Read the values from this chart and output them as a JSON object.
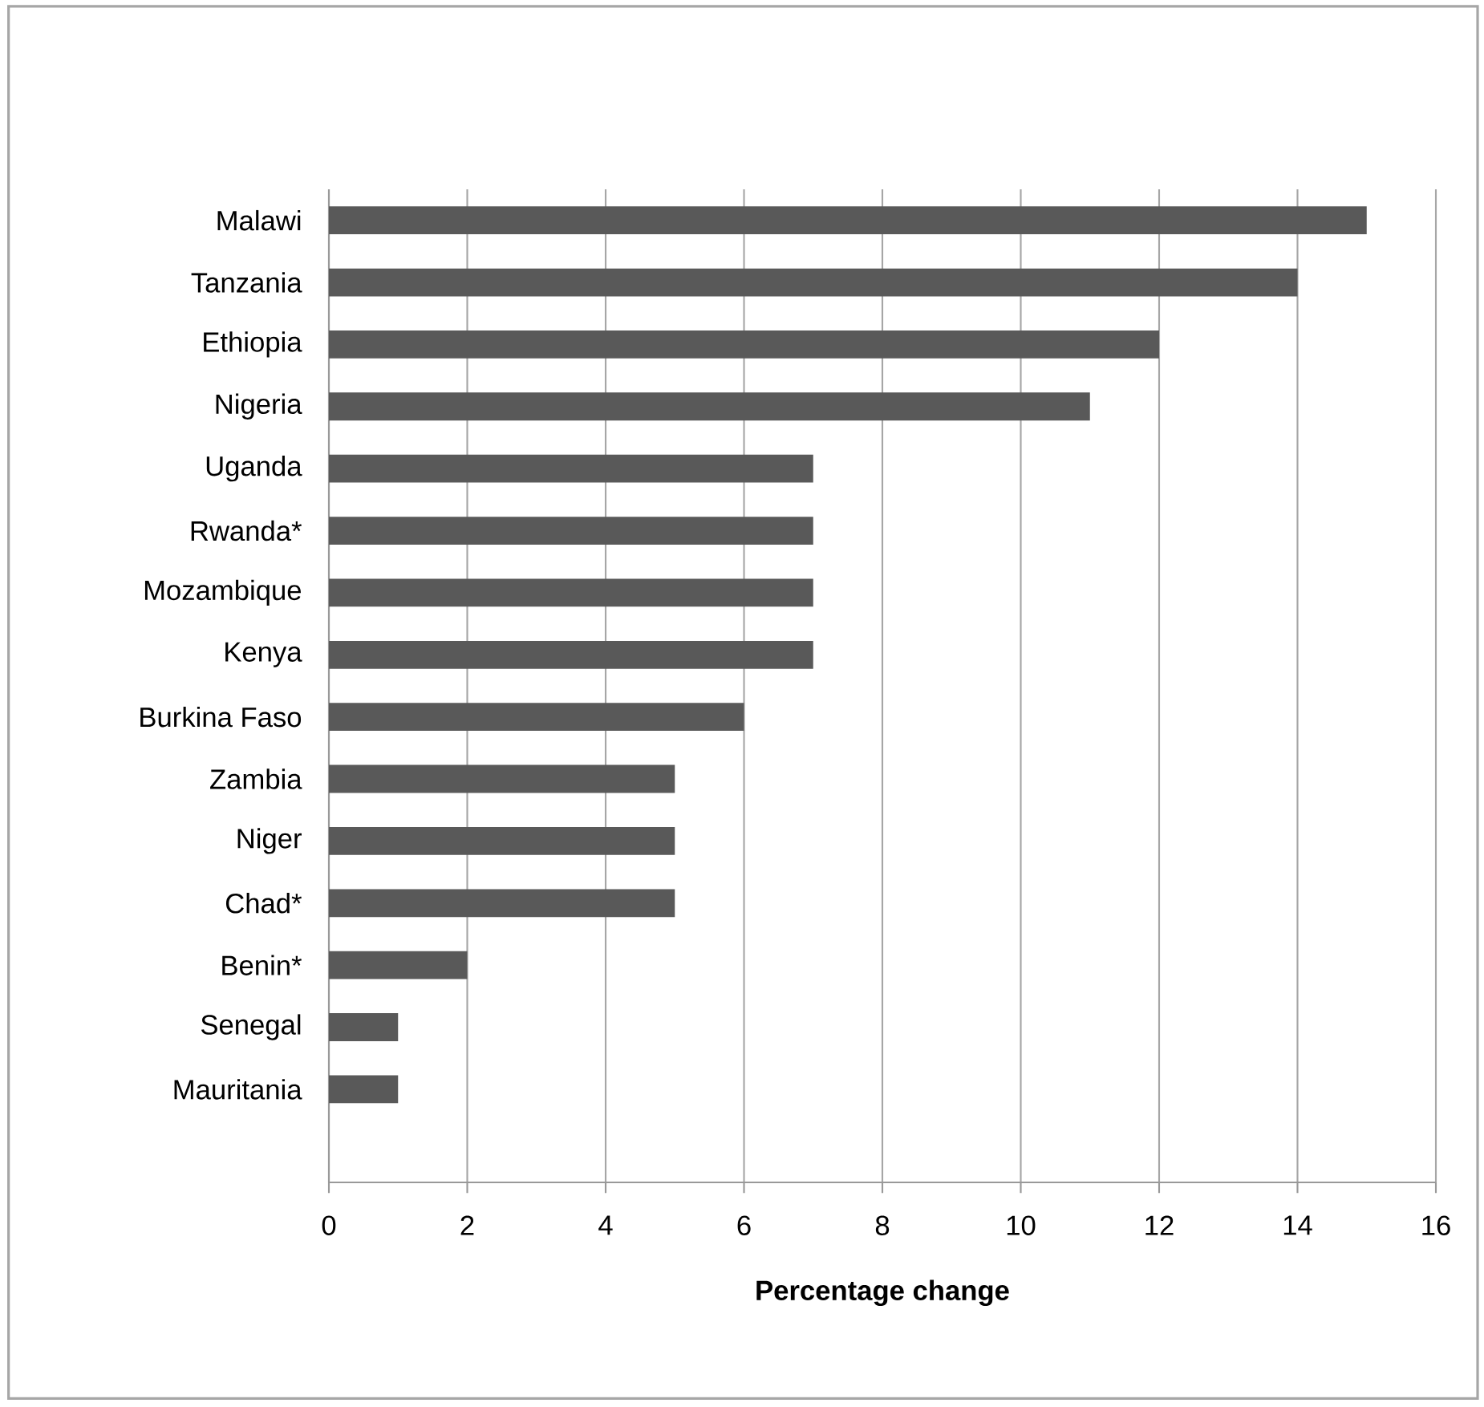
{
  "chart_data": {
    "type": "bar",
    "orientation": "horizontal",
    "xlabel": "Percentage change",
    "categories": [
      "Malawi",
      "Tanzania",
      "Ethiopia",
      "Nigeria",
      "Uganda",
      "Rwanda*",
      "Mozambique",
      "Kenya",
      "Burkina Faso",
      "Zambia",
      "Niger",
      "Chad*",
      "Benin*",
      "Senegal",
      "Mauritania"
    ],
    "values": [
      15,
      14,
      12,
      11,
      7,
      7,
      7,
      7,
      6,
      5,
      5,
      5,
      2,
      1,
      1
    ],
    "color": "#595959",
    "xlim": [
      0,
      16
    ],
    "xticks": [
      0,
      2,
      4,
      6,
      8,
      10,
      12,
      14,
      16
    ],
    "grid": "x"
  }
}
